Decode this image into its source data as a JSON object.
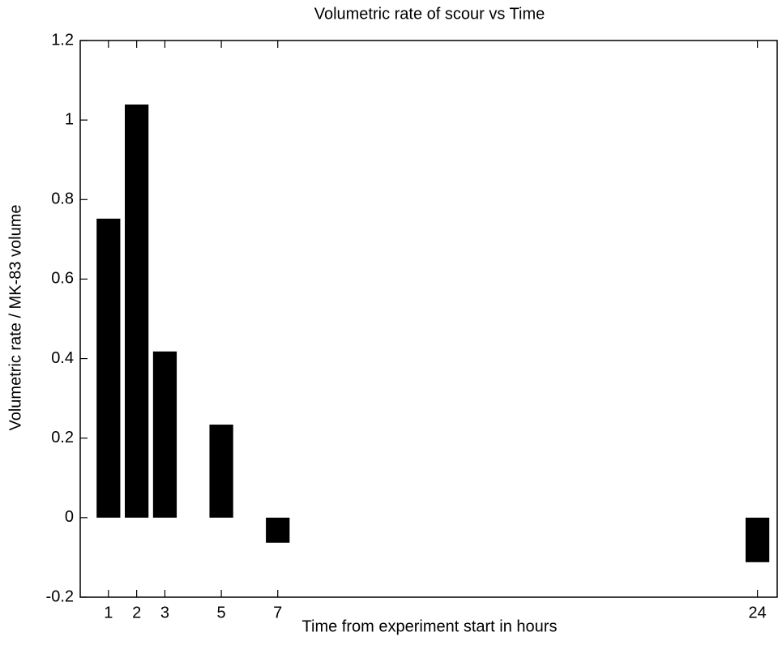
{
  "chart_data": {
    "type": "bar",
    "title": "Volumetric rate of scour vs Time",
    "x_label": "Time from experiment start in hours",
    "y_label": "Volumetric rate / MK-83 volume",
    "x": [
      1,
      2,
      3,
      5,
      7,
      24
    ],
    "values": [
      0.752,
      1.039,
      0.418,
      0.234,
      -0.063,
      -0.112
    ],
    "color": "#000000",
    "xlim": [
      0,
      24.7
    ],
    "xticks": [
      1,
      2,
      3,
      5,
      7,
      24
    ],
    "ylim": [
      -0.2,
      1.2
    ],
    "yticks": [
      -0.2,
      0,
      0.2,
      0.4,
      0.6,
      0.8,
      1,
      1.2
    ],
    "grid": false
  }
}
